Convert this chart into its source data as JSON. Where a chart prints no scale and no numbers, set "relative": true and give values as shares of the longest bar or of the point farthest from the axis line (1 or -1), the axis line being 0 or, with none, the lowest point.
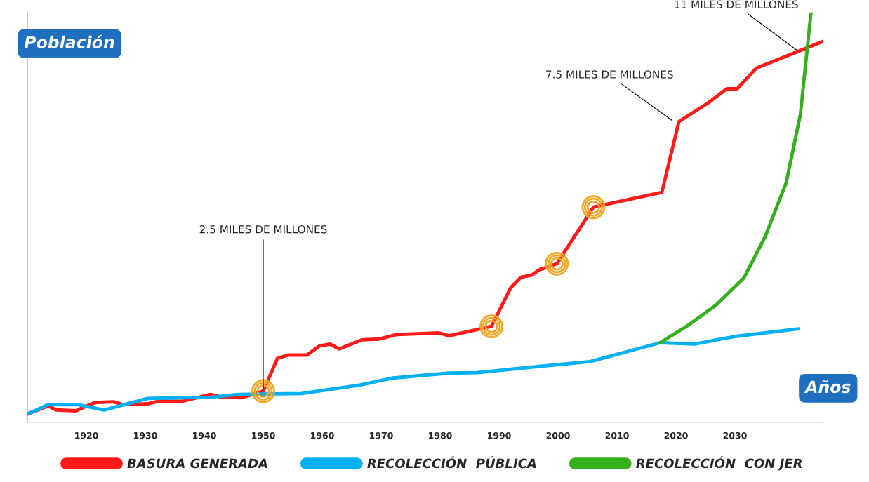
{
  "chart_data": {
    "type": "line",
    "relative": true,
    "ylabel": "Población",
    "xlabel": "Años",
    "xlim": [
      1910,
      2045
    ],
    "xticks": [
      1920,
      1930,
      1940,
      1950,
      1960,
      1970,
      1980,
      1990,
      2000,
      2010,
      2020,
      2030
    ],
    "grid": false,
    "legend": "bottom",
    "series": [
      {
        "name": "BASURA GENERADA",
        "color": "#ff1a1a",
        "x": [
          1910,
          1913.5,
          1914.9,
          1918.2,
          1921.4,
          1924.6,
          1926.2,
          1930.4,
          1932.1,
          1936.1,
          1941.1,
          1942.9,
          1946.4,
          1950,
          1952.4,
          1954.2,
          1957.4,
          1959.5,
          1961.3,
          1962.9,
          1966.7,
          1969.6,
          1972.6,
          1979.8,
          1981.5,
          1988.7,
          1992.0,
          1993.7,
          1995.5,
          1996.8,
          1999.8,
          2006.0,
          2017.6,
          2020.5,
          2025.6,
          2028.6,
          2030.4,
          2033.6,
          2045.0
        ],
        "values": [
          0.02,
          0.04,
          0.03,
          0.028,
          0.048,
          0.05,
          0.043,
          0.045,
          0.051,
          0.051,
          0.068,
          0.061,
          0.06,
          0.076,
          0.156,
          0.164,
          0.164,
          0.186,
          0.191,
          0.179,
          0.201,
          0.203,
          0.214,
          0.218,
          0.211,
          0.234,
          0.329,
          0.354,
          0.359,
          0.372,
          0.387,
          0.525,
          0.561,
          0.734,
          0.781,
          0.814,
          0.814,
          0.864,
          0.93
        ]
      },
      {
        "name": "RECOLECCIÓN  PÚBLICA",
        "color": "#00b0f0",
        "x": [
          1910,
          1913.5,
          1918.5,
          1923.0,
          1930.4,
          1941.1,
          1945.8,
          1956.5,
          1966.1,
          1972.0,
          1981.5,
          1986.3,
          1995.8,
          2005.4,
          2017.3,
          2023.2,
          2029.8,
          2040.8
        ],
        "values": [
          0.02,
          0.043,
          0.043,
          0.03,
          0.058,
          0.061,
          0.068,
          0.07,
          0.09,
          0.108,
          0.12,
          0.121,
          0.135,
          0.148,
          0.194,
          0.191,
          0.209,
          0.228
        ]
      },
      {
        "name": "RECOLECCIÓN  CON JER",
        "color": "#33b01a",
        "x": [
          2017.3,
          2022.0,
          2026.8,
          2031.5,
          2035.1,
          2038.7,
          2041.1,
          2042.9
        ],
        "values": [
          0.194,
          0.236,
          0.286,
          0.352,
          0.452,
          0.585,
          0.751,
          1.0
        ]
      },
      {
        "type": "scatter",
        "marker": "circle",
        "color": "#f5a623",
        "x": [
          1950,
          1988.7,
          1999.8,
          2006.0
        ],
        "values": [
          0.076,
          0.234,
          0.387,
          0.525
        ]
      }
    ],
    "annotations": [
      {
        "text": "2.5 MILES DE MILLONES",
        "x": 1950,
        "y": 0.076
      },
      {
        "text": "7.5 MILES DE MILLONES",
        "x": 2019.6,
        "y": 0.734
      },
      {
        "text": "11 MILES DE MILLONES",
        "x": 2040.8,
        "y": 0.905
      }
    ]
  }
}
